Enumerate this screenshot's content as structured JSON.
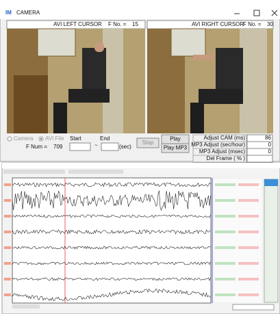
{
  "window": {
    "icon": "IM",
    "title": "CAMERA"
  },
  "left_cursor": {
    "label": "AVI LEFT CURSOR",
    "frame_label": "F No. =",
    "frame": 15
  },
  "right_cursor": {
    "label": "AVI RIGHT CURSOR",
    "frame_label": "F No. =",
    "frame": 30
  },
  "source": {
    "camera": "Camera",
    "avi_file": "AVI File"
  },
  "range": {
    "start": "Start",
    "end": "End",
    "frame_label": "F Num =",
    "frame": 709,
    "tilde": "~",
    "unit": "(sec)"
  },
  "buttons": {
    "stop": "Stop",
    "play": "Play",
    "play_mp3": "Play MP3"
  },
  "adjustments": [
    {
      "label": "Adjust CAM (ms)",
      "value": 86
    },
    {
      "label": "MP3 Adjust (sec/hour)",
      "value": 0
    },
    {
      "label": "MP3 Adjust (msec)",
      "value": 0
    },
    {
      "label": "Del Frame ( % )"
    }
  ]
}
